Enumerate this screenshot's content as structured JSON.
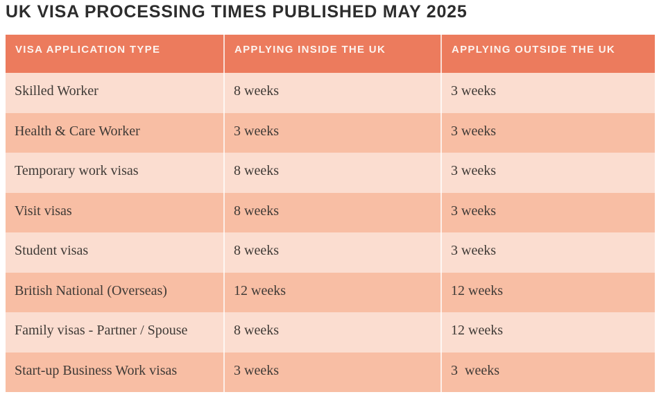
{
  "title": "UK VISA PROCESSING TIMES PUBLISHED MAY 2025",
  "colors": {
    "header_bg": "#ec7b5d",
    "row_light_bg": "#fbddd0",
    "row_dark_bg": "#f8bea4",
    "header_text": "#fdf4f0",
    "body_text": "#3f3a36",
    "title_text": "#2d2d2d",
    "column_divider": "rgba(255,255,255,0.75)"
  },
  "chart_data": {
    "type": "table",
    "title": "UK VISA PROCESSING TIMES PUBLISHED MAY 2025",
    "columns": [
      "VISA APPLICATION TYPE",
      "APPLYING INSIDE THE UK",
      "APPLYING OUTSIDE THE UK"
    ],
    "rows": [
      [
        "Skilled Worker",
        "8 weeks",
        "3 weeks"
      ],
      [
        "Health & Care Worker",
        "3 weeks",
        "3 weeks"
      ],
      [
        "Temporary work visas",
        "8 weeks",
        "3 weeks"
      ],
      [
        "Visit visas",
        "8 weeks",
        "3 weeks"
      ],
      [
        "Student visas",
        "8 weeks",
        "3 weeks"
      ],
      [
        "British National (Overseas)",
        "12 weeks",
        "12 weeks"
      ],
      [
        "Family visas - Partner / Spouse",
        "8 weeks",
        "12 weeks"
      ],
      [
        "Start-up Business Work visas",
        "3 weeks",
        "3  weeks"
      ]
    ],
    "layout": {
      "row_striping": "alternating light/dark peach starting with light",
      "grid": "vertical white dividers only, no horizontal lines",
      "legend": "none"
    }
  }
}
